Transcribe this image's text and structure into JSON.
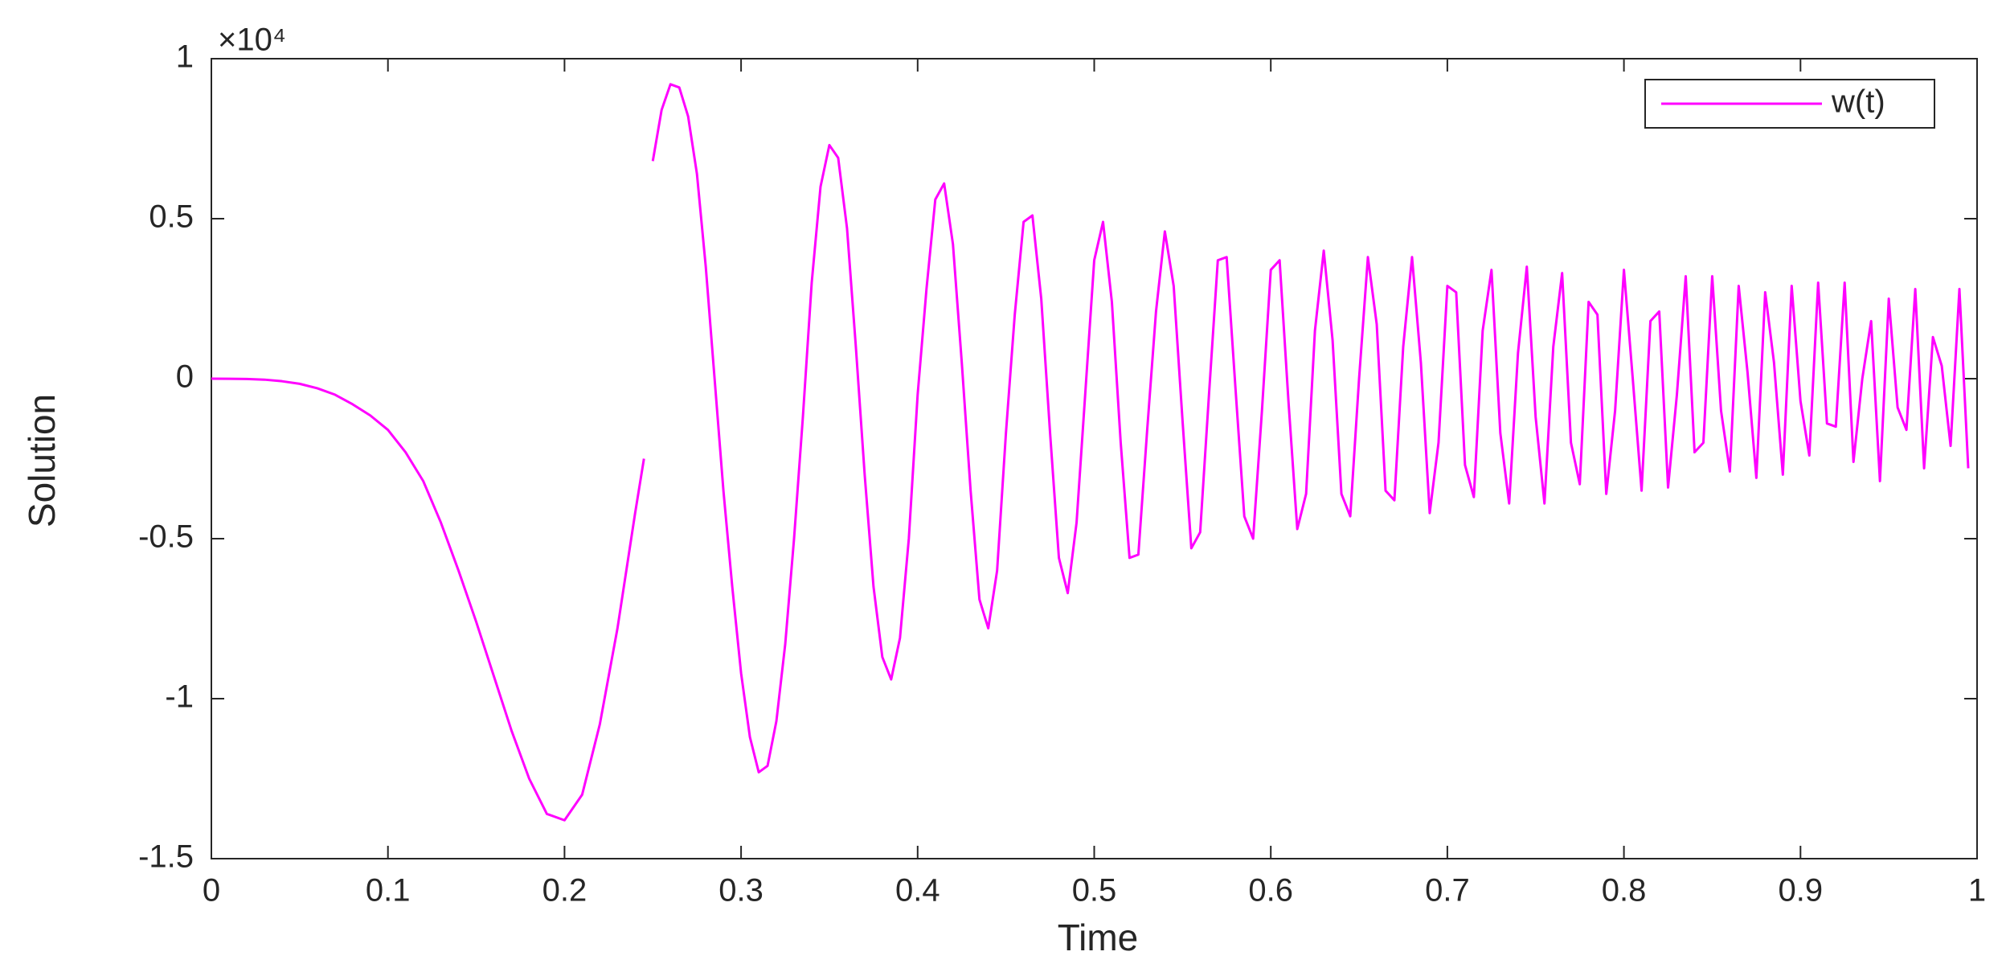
{
  "chart_data": {
    "type": "line",
    "y_multiplier": "×10⁴",
    "xlabel": "Time",
    "ylabel": "Solution",
    "xlim": [
      0,
      1
    ],
    "ylim": [
      -1.5,
      1
    ],
    "xticks": [
      0,
      0.1,
      0.2,
      0.3,
      0.4,
      0.5,
      0.6,
      0.7,
      0.8,
      0.9,
      1
    ],
    "yticks": [
      -1.5,
      -1,
      -0.5,
      0,
      0.5,
      1
    ],
    "legend": "upper right",
    "grid": false,
    "x": [
      0,
      0.01,
      0.02,
      0.03,
      0.04,
      0.05,
      0.06,
      0.07,
      0.08,
      0.09,
      0.1,
      0.11,
      0.12,
      0.13,
      0.14,
      0.15,
      0.16,
      0.17,
      0.18,
      0.19,
      0.2,
      0.21,
      0.22,
      0.23,
      0.24,
      0.245,
      0.2475,
      0.25,
      0.255,
      0.26,
      0.265,
      0.27,
      0.275,
      0.28,
      0.285,
      0.29,
      0.295,
      0.3,
      0.305,
      0.31,
      0.315,
      0.32,
      0.325,
      0.33,
      0.335,
      0.34,
      0.345,
      0.35,
      0.355,
      0.36,
      0.365,
      0.37,
      0.375,
      0.38,
      0.385,
      0.39,
      0.395,
      0.4,
      0.405,
      0.41,
      0.415,
      0.42,
      0.425,
      0.43,
      0.435,
      0.44,
      0.445,
      0.45,
      0.455,
      0.46,
      0.465,
      0.47,
      0.475,
      0.48,
      0.485,
      0.49,
      0.495,
      0.5,
      0.505,
      0.51,
      0.515,
      0.52,
      0.525,
      0.53,
      0.535,
      0.54,
      0.545,
      0.55,
      0.555,
      0.56,
      0.565,
      0.57,
      0.575,
      0.58,
      0.585,
      0.59,
      0.595,
      0.6,
      0.605,
      0.61,
      0.615,
      0.62,
      0.625,
      0.63,
      0.635,
      0.64,
      0.645,
      0.65,
      0.655,
      0.66,
      0.665,
      0.67,
      0.675,
      0.68,
      0.685,
      0.69,
      0.695,
      0.7,
      0.705,
      0.71,
      0.715,
      0.72,
      0.725,
      0.73,
      0.735,
      0.74,
      0.745,
      0.75,
      0.755,
      0.76,
      0.765,
      0.77,
      0.775,
      0.78,
      0.785,
      0.79,
      0.795,
      0.8,
      0.805,
      0.81,
      0.815,
      0.82,
      0.825,
      0.83,
      0.835,
      0.84,
      0.845,
      0.85,
      0.855,
      0.86,
      0.865,
      0.87,
      0.875,
      0.88,
      0.885,
      0.89,
      0.895,
      0.9,
      0.905,
      0.91,
      0.915,
      0.92,
      0.925,
      0.93,
      0.935,
      0.94,
      0.945,
      0.95,
      0.955,
      0.96,
      0.965,
      0.97,
      0.975,
      0.98,
      0.985,
      0.99,
      0.995
    ],
    "series": [
      {
        "name": "w(t)",
        "color": "#ff00ff",
        "values": [
          0,
          -0.0002,
          -0.001,
          -0.003,
          -0.008,
          -0.016,
          -0.03,
          -0.05,
          -0.08,
          -0.115,
          -0.16,
          -0.23,
          -0.32,
          -0.45,
          -0.6,
          -0.76,
          -0.93,
          -1.1,
          -1.25,
          -1.36,
          -1.38,
          -1.3,
          -1.08,
          -0.78,
          -0.42,
          -0.25,
          null,
          0.68,
          0.84,
          0.92,
          0.91,
          0.82,
          0.64,
          0.35,
          -0.0,
          -0.35,
          -0.65,
          -0.92,
          -1.12,
          -1.23,
          -1.21,
          -1.07,
          -0.83,
          -0.5,
          -0.12,
          0.3,
          0.6,
          0.73,
          0.69,
          0.47,
          0.1,
          -0.3,
          -0.65,
          -0.87,
          -0.94,
          -0.81,
          -0.5,
          -0.05,
          0.28,
          0.56,
          0.61,
          0.42,
          0.05,
          -0.35,
          -0.69,
          -0.78,
          -0.6,
          -0.17,
          0.2,
          0.49,
          0.51,
          0.25,
          -0.17,
          -0.56,
          -0.67,
          -0.45,
          -0.04,
          0.37,
          0.49,
          0.24,
          -0.2,
          -0.56,
          -0.55,
          -0.16,
          0.21,
          0.46,
          0.29,
          -0.13,
          -0.53,
          -0.48,
          -0.05,
          0.37,
          0.38,
          -0.03,
          -0.43,
          -0.5,
          -0.1,
          0.34,
          0.37,
          -0.07,
          -0.47,
          -0.36,
          0.15,
          0.4,
          0.12,
          -0.36,
          -0.43,
          0.0,
          0.38,
          0.17,
          -0.35,
          -0.38,
          0.1,
          0.38,
          0.05,
          -0.42,
          -0.2,
          0.29,
          0.27,
          -0.27,
          -0.37,
          0.15,
          0.34,
          -0.17,
          -0.39,
          0.08,
          0.35,
          -0.12,
          -0.39,
          0.1,
          0.33,
          -0.2,
          -0.33,
          0.24,
          0.2,
          -0.36,
          -0.1,
          0.34,
          0.0,
          -0.35,
          0.18,
          0.21,
          -0.34,
          -0.05,
          0.32,
          -0.23,
          -0.2,
          0.32,
          -0.1,
          -0.29,
          0.29,
          0.02,
          -0.31,
          0.27,
          0.05,
          -0.3,
          0.29,
          -0.07,
          -0.24,
          0.3,
          -0.14,
          -0.15,
          0.3,
          -0.26,
          0.0,
          0.18,
          -0.32,
          0.25,
          -0.09,
          -0.16,
          0.28,
          -0.28,
          0.13,
          0.04,
          -0.21,
          0.28,
          -0.28
        ]
      }
    ]
  }
}
